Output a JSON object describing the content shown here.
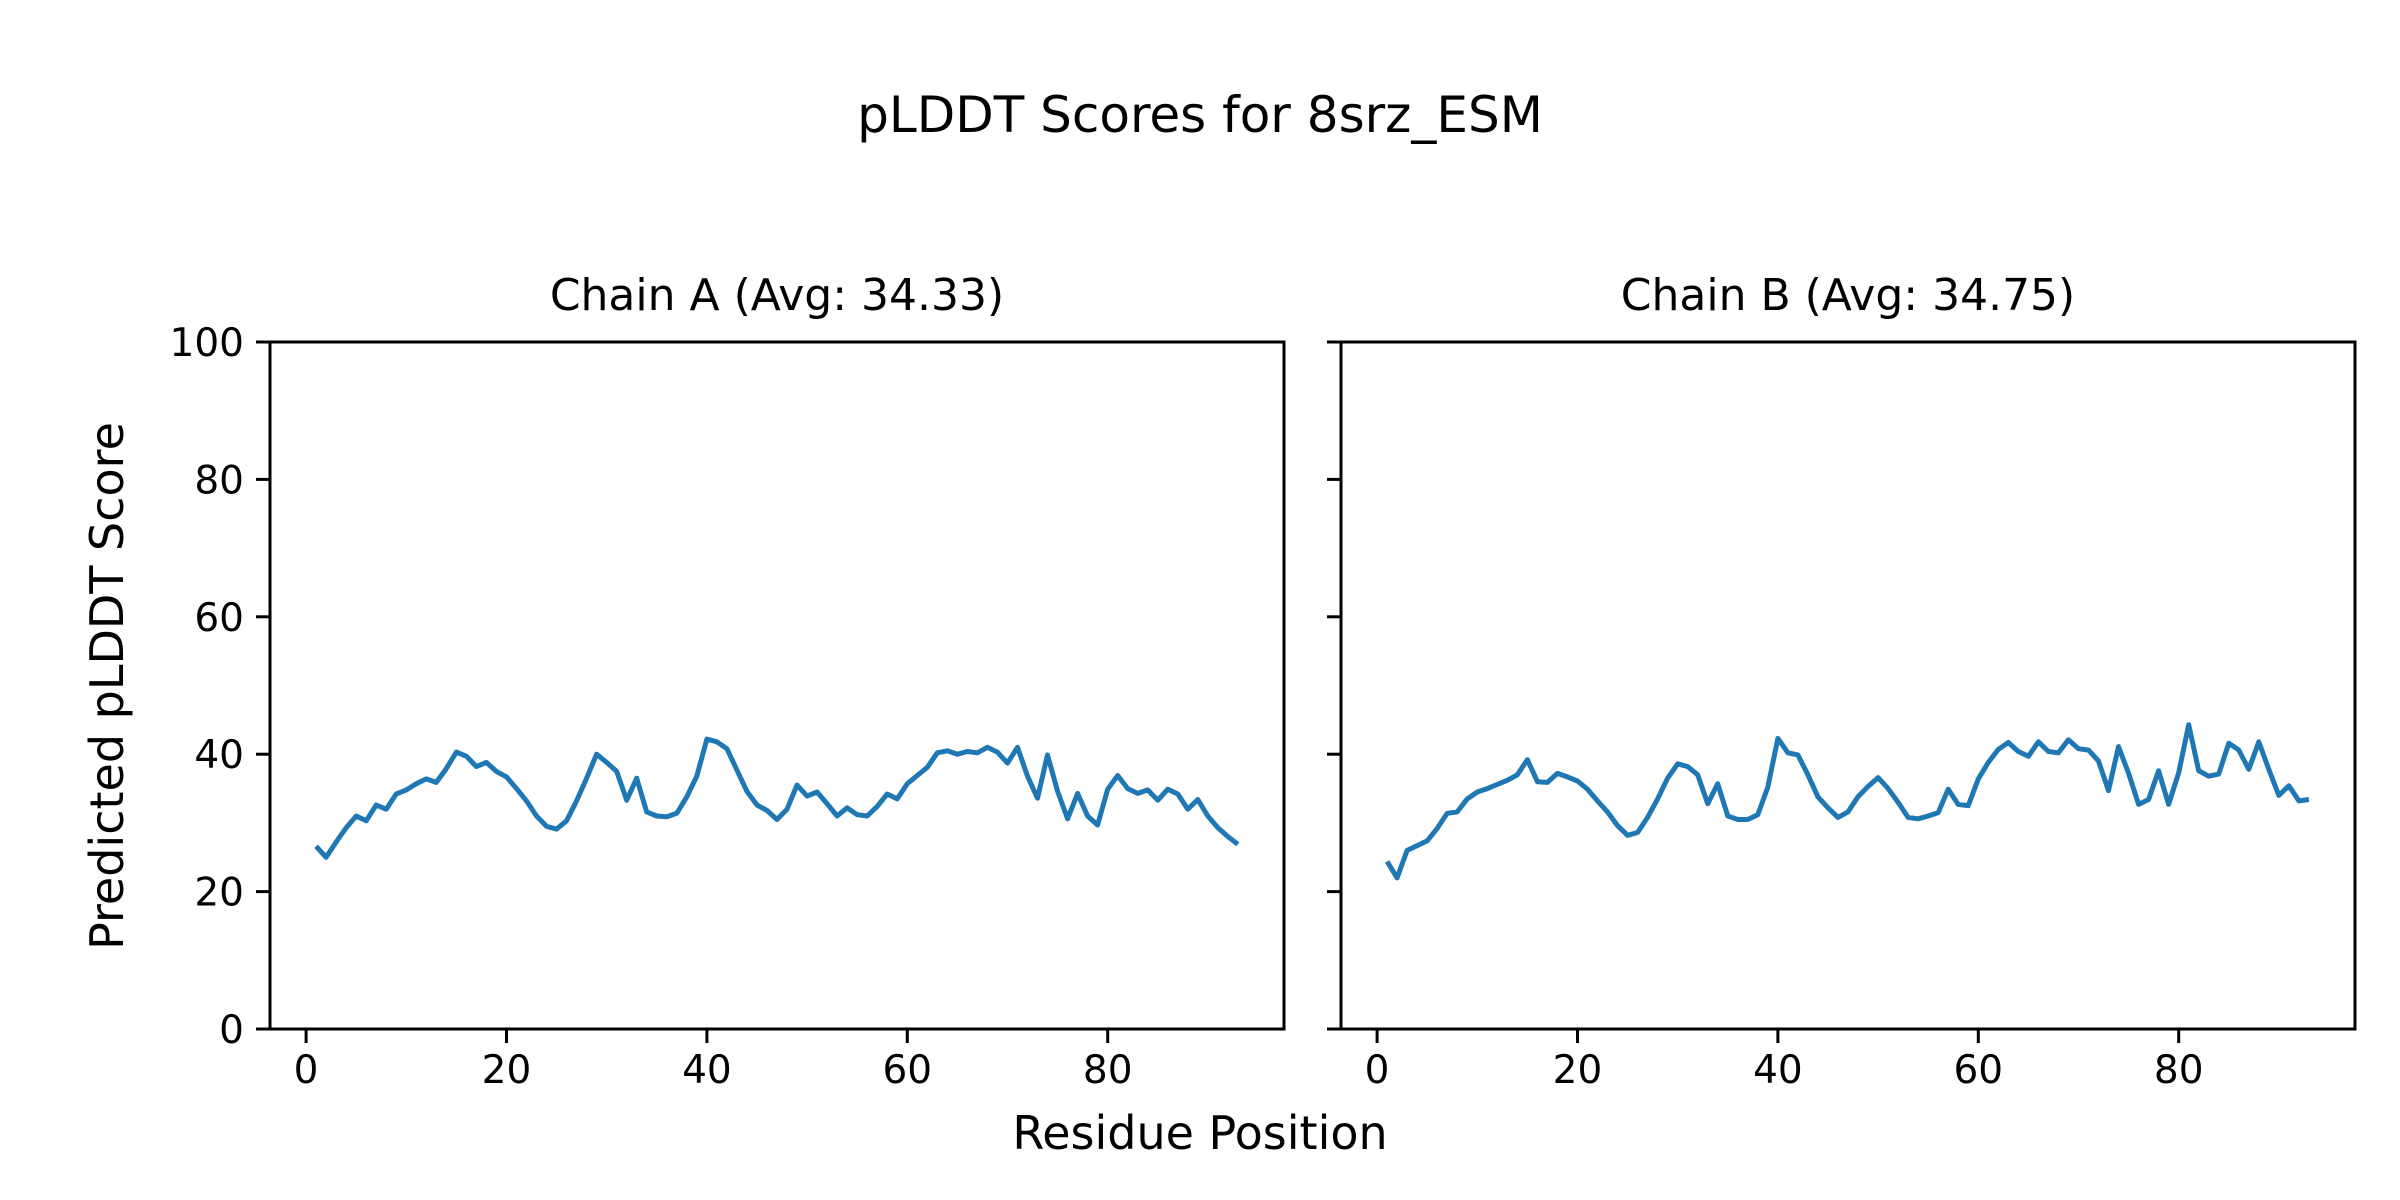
{
  "title": "pLDDT Scores for 8srz_ESM",
  "xlabel": "Residue Position",
  "ylabel": "Predicted pLDDT Score",
  "chart_data": [
    {
      "type": "line",
      "title": "Chain A (Avg: 34.33)",
      "avg": 34.33,
      "xlabel": "Residue Position",
      "ylabel": "Predicted pLDDT Score",
      "xlim": [
        -3.6,
        97.6
      ],
      "ylim": [
        0,
        100
      ],
      "xticks": [
        0,
        20,
        40,
        60,
        80
      ],
      "yticks": [
        0,
        20,
        40,
        60,
        80,
        100
      ],
      "show_ytick_labels": true,
      "grid": false,
      "legend": "none",
      "line_color": "#1f77b4",
      "series": [
        {
          "name": "Chain A",
          "x_start": 1,
          "values": [
            26.6,
            25.0,
            27.2,
            29.3,
            31.0,
            30.3,
            32.6,
            32.0,
            34.2,
            34.8,
            35.7,
            36.4,
            35.9,
            37.9,
            40.3,
            39.7,
            38.2,
            38.8,
            37.5,
            36.7,
            35.0,
            33.2,
            31.0,
            29.5,
            29.1,
            30.3,
            33.2,
            36.5,
            40.0,
            38.8,
            37.5,
            33.3,
            36.5,
            31.6,
            31.0,
            30.9,
            31.4,
            33.8,
            36.8,
            42.2,
            41.8,
            40.8,
            37.7,
            34.6,
            32.6,
            31.8,
            30.5,
            32.0,
            35.5,
            33.9,
            34.5,
            32.8,
            31.0,
            32.2,
            31.2,
            31.0,
            32.4,
            34.2,
            33.5,
            35.7,
            36.9,
            38.1,
            40.2,
            40.5,
            40.0,
            40.4,
            40.2,
            41.0,
            40.3,
            38.7,
            41.0,
            36.8,
            33.6,
            39.9,
            34.6,
            30.6,
            34.3,
            31.0,
            29.7,
            34.9,
            36.9,
            35.0,
            34.3,
            34.8,
            33.3,
            34.9,
            34.2,
            32.0,
            33.4,
            31.0,
            29.3,
            28.0,
            26.9
          ]
        }
      ]
    },
    {
      "type": "line",
      "title": "Chain B (Avg: 34.75)",
      "avg": 34.75,
      "xlabel": "Residue Position",
      "ylabel": "Predicted pLDDT Score",
      "xlim": [
        -3.6,
        97.6
      ],
      "ylim": [
        0,
        100
      ],
      "xticks": [
        0,
        20,
        40,
        60,
        80
      ],
      "yticks": [
        0,
        20,
        40,
        60,
        80,
        100
      ],
      "show_ytick_labels": false,
      "grid": false,
      "legend": "none",
      "line_color": "#1f77b4",
      "series": [
        {
          "name": "Chain B",
          "x_start": 1,
          "values": [
            24.4,
            22.0,
            26.0,
            26.7,
            27.4,
            29.2,
            31.4,
            31.6,
            33.5,
            34.5,
            35.0,
            35.6,
            36.2,
            37.0,
            39.2,
            36.0,
            35.9,
            37.2,
            36.7,
            36.1,
            34.9,
            33.2,
            31.6,
            29.6,
            28.2,
            28.6,
            30.8,
            33.5,
            36.5,
            38.6,
            38.2,
            37.0,
            32.8,
            35.7,
            31.0,
            30.5,
            30.5,
            31.2,
            35.2,
            42.3,
            40.2,
            39.9,
            37.0,
            33.8,
            32.2,
            30.8,
            31.6,
            33.8,
            35.3,
            36.6,
            35.0,
            33.0,
            30.8,
            30.6,
            31.0,
            31.5,
            34.9,
            32.7,
            32.5,
            36.4,
            38.8,
            40.7,
            41.7,
            40.4,
            39.7,
            41.8,
            40.4,
            40.2,
            42.1,
            40.8,
            40.6,
            39.0,
            34.7,
            41.1,
            37.2,
            32.7,
            33.4,
            37.6,
            32.7,
            37.3,
            44.3,
            37.6,
            36.8,
            37.1,
            41.6,
            40.6,
            37.8,
            41.8,
            37.8,
            34.0,
            35.4,
            33.2,
            33.4
          ]
        }
      ]
    }
  ],
  "style": {
    "line_color": "#1f77b4",
    "axis_color": "#000000",
    "background": "#ffffff"
  }
}
